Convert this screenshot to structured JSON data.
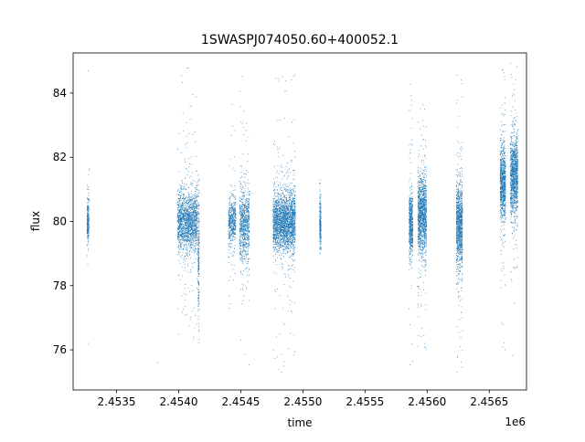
{
  "chart_data": {
    "type": "scatter",
    "title": "1SWASPJ074050.60+400052.1",
    "xlabel": "time",
    "ylabel": "flux",
    "x_offset_label": "1e6",
    "x_tick_labels": [
      "2.4535",
      "2.4540",
      "2.4545",
      "2.4550",
      "2.4555",
      "2.4560",
      "2.4565"
    ],
    "x_ticks": [
      2453500,
      2454000,
      2454500,
      2455000,
      2455500,
      2456000,
      2456500
    ],
    "y_tick_labels": [
      "76",
      "78",
      "80",
      "82",
      "84"
    ],
    "y_ticks": [
      76,
      78,
      80,
      82,
      84
    ],
    "xlim": [
      2453150,
      2456800
    ],
    "ylim": [
      74.75,
      85.25
    ],
    "grid": false,
    "legend": "none",
    "marker_color": "#1f77b4",
    "observation_groups": [
      {
        "center": 2453270,
        "spread": 8,
        "mean": 80.0,
        "core_sd": 0.3,
        "low": 78.3,
        "high": 81.8,
        "n": 260
      },
      {
        "center": 2454070,
        "spread": 80,
        "mean": 80.0,
        "core_sd": 0.45,
        "low": 76.2,
        "high": 84.8,
        "n": 1700
      },
      {
        "center": 2454160,
        "spread": 6,
        "mean": 79.0,
        "core_sd": 0.9,
        "low": 75.5,
        "high": 81.5,
        "n": 220
      },
      {
        "center": 2454430,
        "spread": 30,
        "mean": 80.0,
        "core_sd": 0.35,
        "low": 77.0,
        "high": 84.2,
        "n": 500
      },
      {
        "center": 2454530,
        "spread": 40,
        "mean": 79.9,
        "core_sd": 0.55,
        "low": 75.3,
        "high": 85.0,
        "n": 800
      },
      {
        "center": 2454850,
        "spread": 90,
        "mean": 80.0,
        "core_sd": 0.45,
        "low": 75.2,
        "high": 84.6,
        "n": 2400
      },
      {
        "center": 2455140,
        "spread": 6,
        "mean": 79.9,
        "core_sd": 0.35,
        "low": 79.0,
        "high": 81.3,
        "n": 260
      },
      {
        "center": 2455870,
        "spread": 15,
        "mean": 79.9,
        "core_sd": 0.5,
        "low": 75.3,
        "high": 84.4,
        "n": 600
      },
      {
        "center": 2455960,
        "spread": 35,
        "mean": 80.2,
        "core_sd": 0.6,
        "low": 76.0,
        "high": 83.8,
        "n": 1300
      },
      {
        "center": 2456260,
        "spread": 25,
        "mean": 79.9,
        "core_sd": 0.65,
        "low": 75.2,
        "high": 85.0,
        "n": 1100
      },
      {
        "center": 2456610,
        "spread": 22,
        "mean": 81.2,
        "core_sd": 0.55,
        "low": 76.0,
        "high": 84.8,
        "n": 900
      },
      {
        "center": 2456700,
        "spread": 30,
        "mean": 81.4,
        "core_sd": 0.6,
        "low": 75.5,
        "high": 85.0,
        "n": 1200
      }
    ],
    "isolated_points": [
      {
        "x": 2453270,
        "y": 84.7
      },
      {
        "x": 2453270,
        "y": 76.2
      },
      {
        "x": 2453830,
        "y": 75.6
      }
    ]
  }
}
